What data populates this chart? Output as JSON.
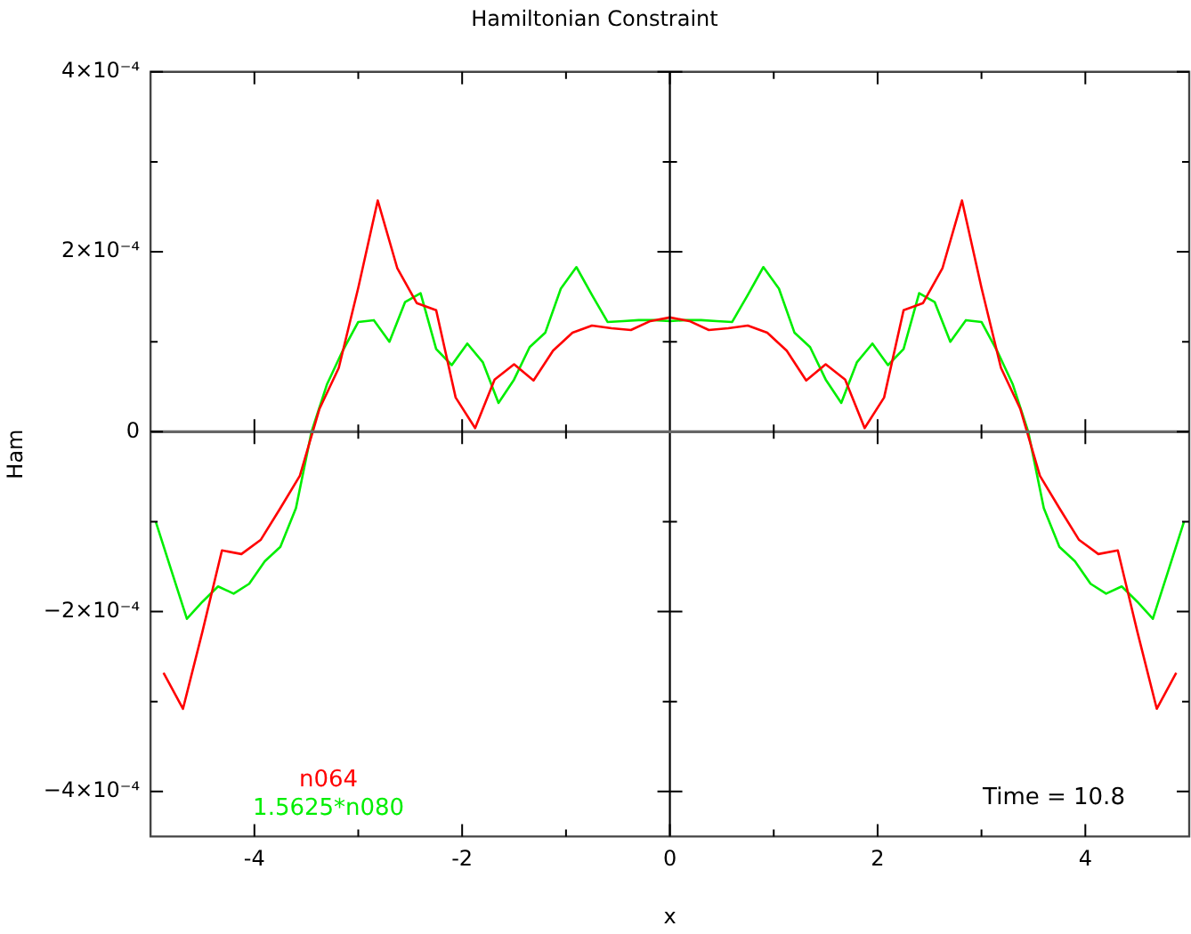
{
  "chart_data": {
    "type": "line",
    "title": "Hamiltonian Constraint",
    "xlabel": "x",
    "ylabel": "Ham",
    "xlim": [
      -5,
      5
    ],
    "xticks": [
      -4,
      {
        "value": -3,
        "label": null
      },
      -2,
      {
        "value": -1,
        "label": null
      },
      0,
      {
        "value": 1,
        "label": null
      },
      2,
      {
        "value": 3,
        "label": null
      },
      4
    ],
    "ylim": [
      -0.00045,
      0.0004
    ],
    "yticks": [
      {
        "value": -0.0004,
        "label": "−4×10⁻⁴"
      },
      {
        "value": -0.0003,
        "label": null
      },
      {
        "value": -0.0002,
        "label": "−2×10⁻⁴"
      },
      {
        "value": -0.0001,
        "label": null
      },
      {
        "value": 0,
        "label": "0"
      },
      {
        "value": 0.0001,
        "label": null
      },
      {
        "value": 0.0002,
        "label": "2×10⁻⁴"
      },
      {
        "value": 0.0003,
        "label": null
      },
      {
        "value": 0.0004,
        "label": "4×10⁻⁴"
      }
    ],
    "legend": "bottom left",
    "marker": "none",
    "line_style": "solid",
    "ref_lines": [
      {
        "axis": "x",
        "value": 0,
        "color": "#000000"
      },
      {
        "axis": "y",
        "value": 0,
        "color": "#666666"
      }
    ],
    "annotations": [
      "Time = 10.8"
    ],
    "series": [
      {
        "name": "n064",
        "color": "#ff0000",
        "x": [
          -4.875,
          -4.6875,
          -4.5,
          -4.3125,
          -4.125,
          -3.9375,
          -3.75,
          -3.5625,
          -3.375,
          -3.1875,
          -3,
          -2.8125,
          -2.625,
          -2.4375,
          -2.25,
          -2.0625,
          -1.875,
          -1.6875,
          -1.5,
          -1.3125,
          -1.125,
          -0.9375,
          -0.75,
          -0.5625,
          -0.375,
          -0.1875,
          0,
          0.1875,
          0.375,
          0.5625,
          0.75,
          0.9375,
          1.125,
          1.3125,
          1.5,
          1.6875,
          1.875,
          2.0625,
          2.25,
          2.4375,
          2.625,
          2.8125,
          3,
          3.1875,
          3.375,
          3.5625,
          3.75,
          3.9375,
          4.125,
          4.3125,
          4.5,
          4.6875,
          4.875
        ],
        "values": [
          -0.000268,
          -0.000308,
          -0.000222,
          -0.000132,
          -0.000136,
          -0.00012,
          -8.5e-05,
          -4.9e-05,
          2.5e-05,
          7.1e-05,
          0.00016,
          0.000257,
          0.000182,
          0.000143,
          0.000135,
          3.8e-05,
          4e-06,
          5.8e-05,
          7.5e-05,
          5.7e-05,
          9e-05,
          0.00011,
          0.000118,
          0.000115,
          0.000113,
          0.000123,
          0.000127,
          0.000123,
          0.000113,
          0.000115,
          0.000118,
          0.00011,
          9e-05,
          5.7e-05,
          7.5e-05,
          5.8e-05,
          4e-06,
          3.8e-05,
          0.000135,
          0.000143,
          0.000182,
          0.000257,
          0.00016,
          7.1e-05,
          2.5e-05,
          -4.9e-05,
          -8.5e-05,
          -0.00012,
          -0.000136,
          -0.000132,
          -0.000222,
          -0.000308,
          -0.000268
        ]
      },
      {
        "name": "1.5625*n080",
        "color": "#00ee00",
        "x": [
          -4.95,
          -4.8,
          -4.65,
          -4.5,
          -4.35,
          -4.2,
          -4.05,
          -3.9,
          -3.75,
          -3.6,
          -3.45,
          -3.3,
          -3.15,
          -3,
          -2.85,
          -2.7,
          -2.55,
          -2.4,
          -2.25,
          -2.1,
          -1.95,
          -1.8,
          -1.65,
          -1.5,
          -1.35,
          -1.2,
          -1.05,
          -0.9,
          -0.75,
          -0.6,
          -0.45,
          -0.3,
          -0.15,
          0,
          0.15,
          0.3,
          0.45,
          0.6,
          0.75,
          0.9,
          1.05,
          1.2,
          1.35,
          1.5,
          1.65,
          1.8,
          1.95,
          2.1,
          2.25,
          2.4,
          2.55,
          2.7,
          2.85,
          3,
          3.15,
          3.3,
          3.45,
          3.6,
          3.75,
          3.9,
          4.05,
          4.2,
          4.35,
          4.5,
          4.65,
          4.8,
          4.95
        ],
        "values": [
          -0.0001,
          -0.000154,
          -0.000208,
          -0.000189,
          -0.000172,
          -0.00018,
          -0.000169,
          -0.000144,
          -0.000128,
          -8.5e-05,
          0,
          5.3e-05,
          9e-05,
          0.000122,
          0.000124,
          0.0001,
          0.000144,
          0.000154,
          9.2e-05,
          7.4e-05,
          9.8e-05,
          7.7e-05,
          3.2e-05,
          5.8e-05,
          9.4e-05,
          0.00011,
          0.000159,
          0.000183,
          0.000152,
          0.000122,
          0.000123,
          0.000124,
          0.000124,
          0.000123,
          0.000124,
          0.000124,
          0.000123,
          0.000122,
          0.000152,
          0.000183,
          0.000159,
          0.00011,
          9.4e-05,
          5.8e-05,
          3.2e-05,
          7.7e-05,
          9.8e-05,
          7.4e-05,
          9.2e-05,
          0.000154,
          0.000144,
          0.0001,
          0.000124,
          0.000122,
          9e-05,
          5.3e-05,
          0,
          -8.5e-05,
          -0.000128,
          -0.000144,
          -0.000169,
          -0.00018,
          -0.000172,
          -0.000189,
          -0.000208,
          -0.000154,
          -0.0001
        ]
      }
    ]
  }
}
